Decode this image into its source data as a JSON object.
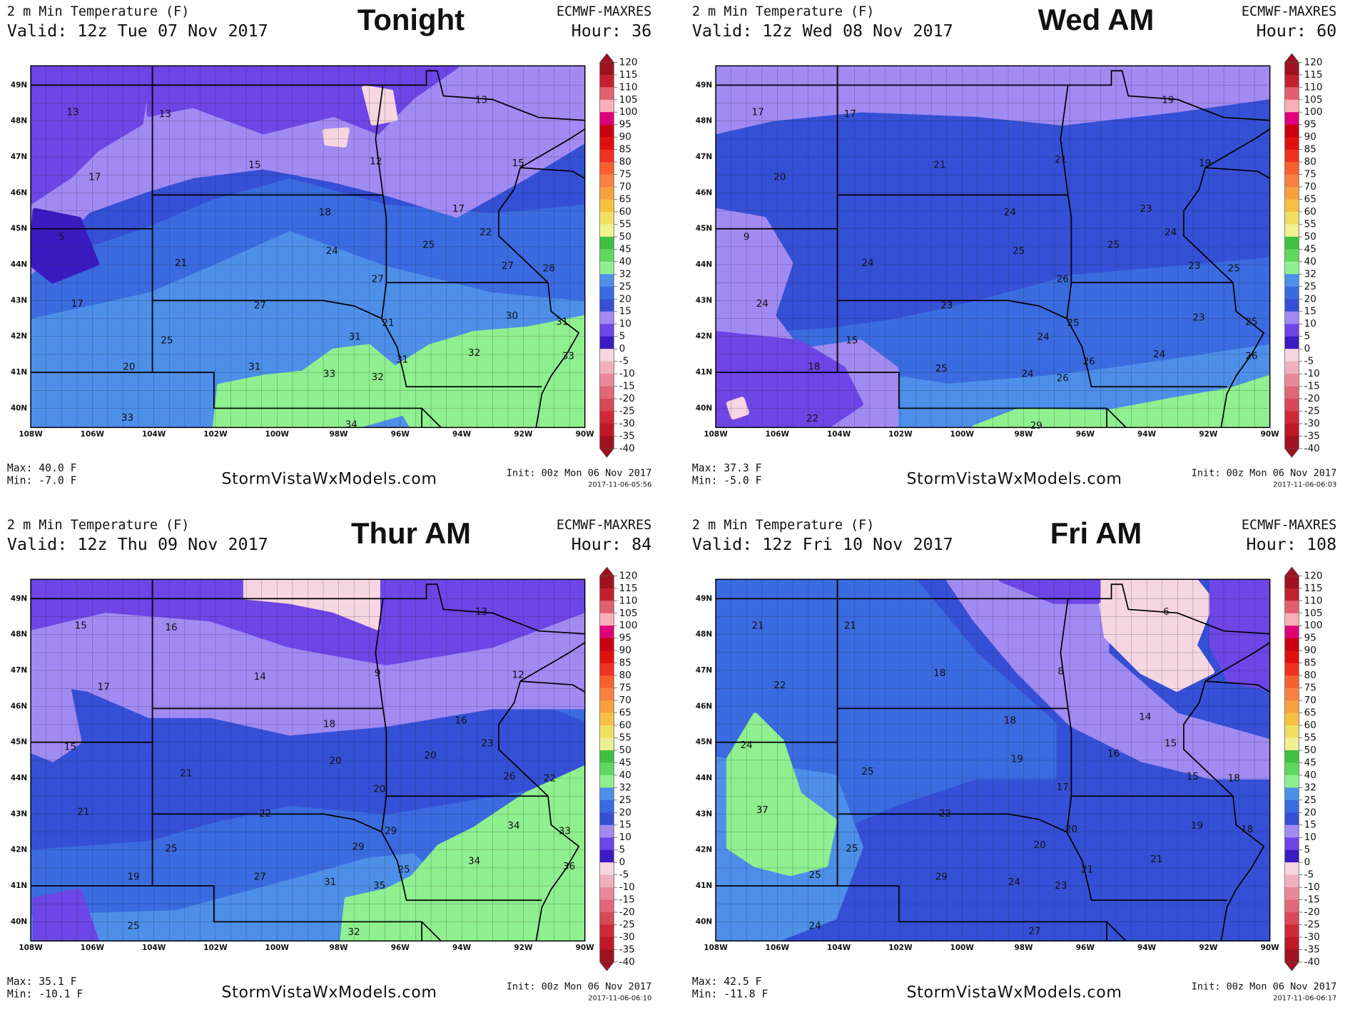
{
  "panels": [
    {
      "header": "2 m Min Temperature (F)",
      "valid": "Valid: 12z Tue 07 Nov 2017",
      "title": "Tonight",
      "model": "ECMWF-MAXRES",
      "hour": "Hour: 36",
      "max": "Max: 40.0 F",
      "min": "Min: -7.0 F",
      "site": "StormVistaWxModels.com",
      "init": "Init: 00z Mon 06 Nov 2017",
      "stamp": "2017-11-06-05:56",
      "points": [
        13,
        13,
        15,
        12,
        15,
        13,
        17,
        18,
        17,
        22,
        5,
        21,
        24,
        25,
        27,
        28,
        27,
        17,
        27,
        30,
        31,
        25,
        21,
        31,
        20,
        31,
        31,
        33,
        32,
        32,
        33,
        33,
        34
      ]
    },
    {
      "header": "2 m Min Temperature (F)",
      "valid": "Valid: 12z Wed 08 Nov 2017",
      "title": "Wed AM",
      "model": "ECMWF-MAXRES",
      "hour": "Hour: 60",
      "max": "Max: 37.3 F",
      "min": "Min: -5.0 F",
      "site": "StormVistaWxModels.com",
      "init": "Init: 00z Mon 06 Nov 2017",
      "stamp": "2017-11-06-06:03",
      "points": [
        17,
        17,
        19,
        20,
        21,
        21,
        19,
        24,
        23,
        9,
        24,
        25,
        25,
        24,
        23,
        25,
        26,
        24,
        23,
        23,
        25,
        15,
        25,
        24,
        18,
        25,
        26,
        24,
        26,
        24,
        26,
        22,
        29
      ]
    },
    {
      "header": "2 m Min Temperature (F)",
      "valid": "Valid: 12z Thu 09 Nov 2017",
      "title": "Thur AM",
      "model": "ECMWF-MAXRES",
      "hour": "Hour: 84",
      "max": "Max: 35.1 F",
      "min": "Min: -10.1 F",
      "site": "StormVistaWxModels.com",
      "init": "Init: 00z Mon 06 Nov 2017",
      "stamp": "2017-11-06-06:10",
      "points": [
        15,
        16,
        13,
        9,
        14,
        12,
        17,
        18,
        16,
        23,
        15,
        21,
        20,
        20,
        26,
        22,
        20,
        21,
        22,
        34,
        33,
        25,
        29,
        29,
        34,
        19,
        27,
        31,
        25,
        35,
        36,
        25,
        32
      ]
    },
    {
      "header": "2 m Min Temperature (F)",
      "valid": "Valid: 12z Fri 10 Nov 2017",
      "title": "Fri AM",
      "model": "ECMWF-MAXRES",
      "hour": "Hour: 108",
      "max": "Max: 42.5 F",
      "min": "Min: -11.8 F",
      "site": "StormVistaWxModels.com",
      "init": "Init: 00z Mon 06 Nov 2017",
      "stamp": "2017-11-06-06:17",
      "points": [
        21,
        21,
        6,
        8,
        18,
        22,
        24,
        18,
        14,
        15,
        16,
        19,
        25,
        15,
        18,
        17,
        37,
        22,
        20,
        19,
        18,
        25,
        20,
        21,
        25,
        29,
        24,
        21,
        23,
        24,
        27
      ]
    }
  ],
  "lat_labels": [
    "49N",
    "48N",
    "47N",
    "46N",
    "45N",
    "44N",
    "43N",
    "42N",
    "41N",
    "40N"
  ],
  "lon_labels": [
    "108W",
    "106W",
    "104W",
    "102W",
    "100W",
    "98W",
    "96W",
    "94W",
    "92W",
    "90W"
  ],
  "colorbar": {
    "ticks": [
      120,
      115,
      110,
      105,
      100,
      95,
      90,
      85,
      80,
      75,
      70,
      65,
      60,
      55,
      50,
      45,
      40,
      32,
      25,
      20,
      15,
      10,
      5,
      0,
      -5,
      -10,
      -15,
      -20,
      -25,
      -30,
      -35,
      -40
    ],
    "colors": [
      "#a01020",
      "#c02030",
      "#e06070",
      "#f8b0b8",
      "#e0007a",
      "#c80010",
      "#e01010",
      "#f03020",
      "#f86030",
      "#f88040",
      "#f8a040",
      "#f8c040",
      "#f0e060",
      "#f0f090",
      "#40c040",
      "#60d860",
      "#90f090",
      "#4d8fe9",
      "#3b6be0",
      "#3550d6",
      "#a18af2",
      "#6e45e6",
      "#3a1bc2",
      "#f6d6e0",
      "#f0b0c0",
      "#e88898",
      "#e06878",
      "#d84858",
      "#d02838",
      "#c01828",
      "#a01020"
    ]
  }
}
